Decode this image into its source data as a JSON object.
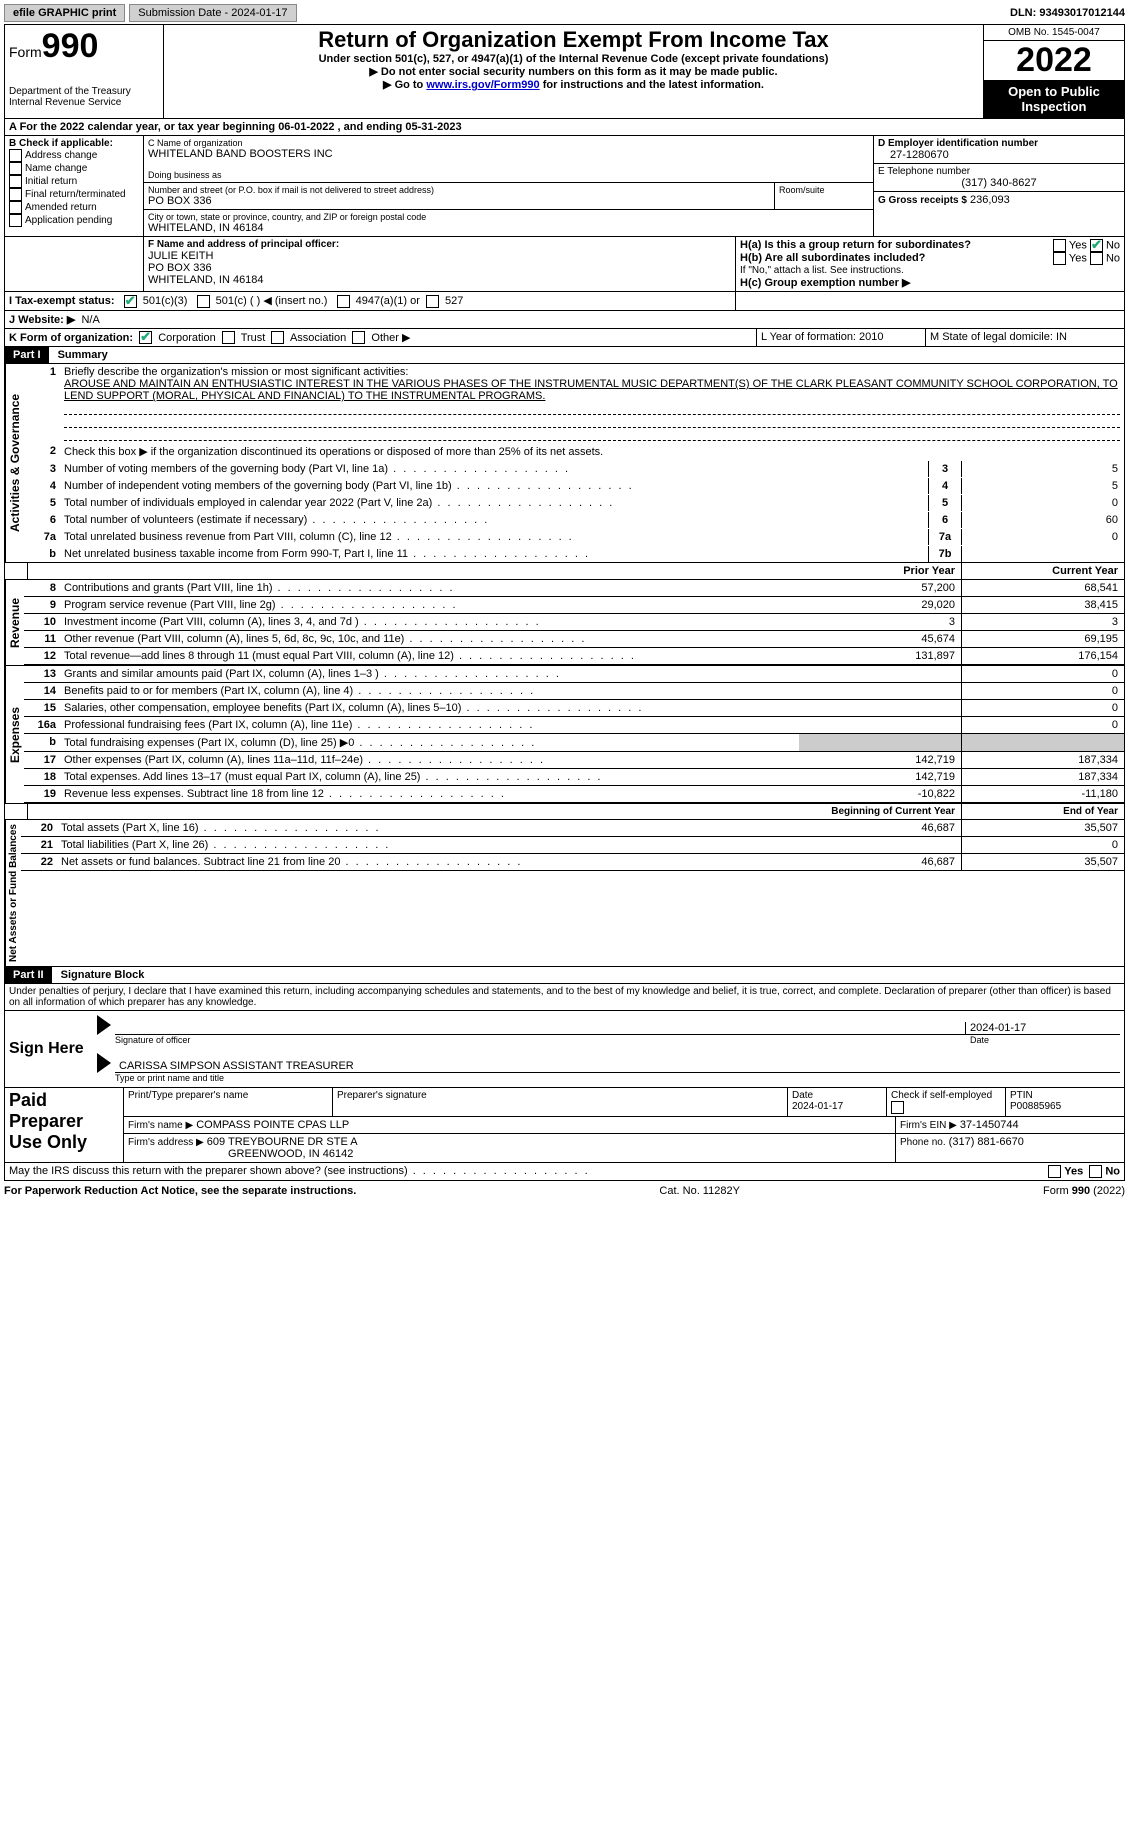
{
  "topbar": {
    "efile_label": "efile GRAPHIC print",
    "submission_label": "Submission Date - 2024-01-17",
    "dln_label": "DLN: 93493017012144"
  },
  "header": {
    "form_word": "Form",
    "form_num": "990",
    "dept": "Department of the Treasury\nInternal Revenue Service",
    "title": "Return of Organization Exempt From Income Tax",
    "subtitle": "Under section 501(c), 527, or 4947(a)(1) of the Internal Revenue Code (except private foundations)",
    "note1": "▶ Do not enter social security numbers on this form as it may be made public.",
    "note2_prefix": "▶ Go to ",
    "note2_link": "www.irs.gov/Form990",
    "note2_suffix": " for instructions and the latest information.",
    "omb": "OMB No. 1545-0047",
    "year": "2022",
    "open": "Open to Public Inspection"
  },
  "A": {
    "line": "A For the 2022 calendar year, or tax year beginning 06-01-2022   , and ending 05-31-2023"
  },
  "B": {
    "label": "B Check if applicable:",
    "opts": [
      "Address change",
      "Name change",
      "Initial return",
      "Final return/terminated",
      "Amended return",
      "Application pending"
    ]
  },
  "C": {
    "name_label": "C Name of organization",
    "name": "WHITELAND BAND BOOSTERS INC",
    "dba_label": "Doing business as",
    "street_label": "Number and street (or P.O. box if mail is not delivered to street address)",
    "room_label": "Room/suite",
    "street": "PO BOX 336",
    "city_label": "City or town, state or province, country, and ZIP or foreign postal code",
    "city": "WHITELAND, IN  46184"
  },
  "D": {
    "label": "D Employer identification number",
    "value": "27-1280670"
  },
  "E": {
    "label": "E Telephone number",
    "value": "(317) 340-8627"
  },
  "G": {
    "label": "G Gross receipts $",
    "value": "236,093"
  },
  "F": {
    "label": "F  Name and address of principal officer:",
    "name": "JULIE KEITH",
    "addr1": "PO BOX 336",
    "addr2": "WHITELAND, IN  46184"
  },
  "H": {
    "a": "H(a)  Is this a group return for subordinates?",
    "b": "H(b)  Are all subordinates included?",
    "b_note": "If \"No,\" attach a list. See instructions.",
    "c": "H(c)  Group exemption number ▶",
    "yes": "Yes",
    "no": "No"
  },
  "I": {
    "label": "I   Tax-exempt status:",
    "o1": "501(c)(3)",
    "o2": "501(c) (  ) ◀ (insert no.)",
    "o3": "4947(a)(1) or",
    "o4": "527"
  },
  "J": {
    "label": "J   Website: ▶",
    "value": "N/A"
  },
  "K": {
    "label": "K Form of organization:",
    "o1": "Corporation",
    "o2": "Trust",
    "o3": "Association",
    "o4": "Other ▶"
  },
  "L": {
    "label": "L Year of formation: 2010"
  },
  "M": {
    "label": "M State of legal domicile: IN"
  },
  "part1": {
    "hdr": "Part I",
    "title": "Summary",
    "q1": "Briefly describe the organization's mission or most significant activities:",
    "mission": "AROUSE AND MAINTAIN AN ENTHUSIASTIC INTEREST IN THE VARIOUS PHASES OF THE INSTRUMENTAL MUSIC DEPARTMENT(S) OF THE CLARK PLEASANT COMMUNITY SCHOOL CORPORATION, TO LEND SUPPORT (MORAL, PHYSICAL AND FINANCIAL) TO THE INSTRUMENTAL PROGRAMS.",
    "q2": "Check this box ▶        if the organization discontinued its operations or disposed of more than 25% of its net assets.",
    "governance_label": "Activities & Governance",
    "revenue_label": "Revenue",
    "expenses_label": "Expenses",
    "netassets_label": "Net Assets or Fund Balances",
    "lines_gov": [
      {
        "n": "3",
        "d": "Number of voting members of the governing body (Part VI, line 1a)",
        "box": "3",
        "v": "5"
      },
      {
        "n": "4",
        "d": "Number of independent voting members of the governing body (Part VI, line 1b)",
        "box": "4",
        "v": "5"
      },
      {
        "n": "5",
        "d": "Total number of individuals employed in calendar year 2022 (Part V, line 2a)",
        "box": "5",
        "v": "0"
      },
      {
        "n": "6",
        "d": "Total number of volunteers (estimate if necessary)",
        "box": "6",
        "v": "60"
      },
      {
        "n": "7a",
        "d": "Total unrelated business revenue from Part VIII, column (C), line 12",
        "box": "7a",
        "v": "0"
      },
      {
        "n": "b",
        "d": "Net unrelated business taxable income from Form 990-T, Part I, line 11",
        "box": "7b",
        "v": ""
      }
    ],
    "col_prior": "Prior Year",
    "col_curr": "Current Year",
    "lines_rev": [
      {
        "n": "8",
        "d": "Contributions and grants (Part VIII, line 1h)",
        "p": "57,200",
        "c": "68,541"
      },
      {
        "n": "9",
        "d": "Program service revenue (Part VIII, line 2g)",
        "p": "29,020",
        "c": "38,415"
      },
      {
        "n": "10",
        "d": "Investment income (Part VIII, column (A), lines 3, 4, and 7d )",
        "p": "3",
        "c": "3"
      },
      {
        "n": "11",
        "d": "Other revenue (Part VIII, column (A), lines 5, 6d, 8c, 9c, 10c, and 11e)",
        "p": "45,674",
        "c": "69,195"
      },
      {
        "n": "12",
        "d": "Total revenue—add lines 8 through 11 (must equal Part VIII, column (A), line 12)",
        "p": "131,897",
        "c": "176,154"
      }
    ],
    "lines_exp": [
      {
        "n": "13",
        "d": "Grants and similar amounts paid (Part IX, column (A), lines 1–3 )",
        "p": "",
        "c": "0"
      },
      {
        "n": "14",
        "d": "Benefits paid to or for members (Part IX, column (A), line 4)",
        "p": "",
        "c": "0"
      },
      {
        "n": "15",
        "d": "Salaries, other compensation, employee benefits (Part IX, column (A), lines 5–10)",
        "p": "",
        "c": "0"
      },
      {
        "n": "16a",
        "d": "Professional fundraising fees (Part IX, column (A), line 11e)",
        "p": "",
        "c": "0"
      },
      {
        "n": "b",
        "d": "Total fundraising expenses (Part IX, column (D), line 25) ▶0",
        "p": "SHADE",
        "c": "SHADE"
      },
      {
        "n": "17",
        "d": "Other expenses (Part IX, column (A), lines 11a–11d, 11f–24e)",
        "p": "142,719",
        "c": "187,334"
      },
      {
        "n": "18",
        "d": "Total expenses. Add lines 13–17 (must equal Part IX, column (A), line 25)",
        "p": "142,719",
        "c": "187,334"
      },
      {
        "n": "19",
        "d": "Revenue less expenses. Subtract line 18 from line 12",
        "p": "-10,822",
        "c": "-11,180"
      }
    ],
    "col_begin": "Beginning of Current Year",
    "col_end": "End of Year",
    "lines_net": [
      {
        "n": "20",
        "d": "Total assets (Part X, line 16)",
        "p": "46,687",
        "c": "35,507"
      },
      {
        "n": "21",
        "d": "Total liabilities (Part X, line 26)",
        "p": "",
        "c": "0"
      },
      {
        "n": "22",
        "d": "Net assets or fund balances. Subtract line 21 from line 20",
        "p": "46,687",
        "c": "35,507"
      }
    ]
  },
  "part2": {
    "hdr": "Part II",
    "title": "Signature Block",
    "perjury": "Under penalties of perjury, I declare that I have examined this return, including accompanying schedules and statements, and to the best of my knowledge and belief, it is true, correct, and complete. Declaration of preparer (other than officer) is based on all information of which preparer has any knowledge.",
    "sign_here": "Sign Here",
    "sig_date": "2024-01-17",
    "sig_officer_line": "Signature of officer",
    "date_label": "Date",
    "officer_name": "CARISSA SIMPSON  ASSISTANT TREASURER",
    "officer_type_line": "Type or print name and title",
    "paid": "Paid Preparer Use Only",
    "pp_name_label": "Print/Type preparer's name",
    "pp_sig_label": "Preparer's signature",
    "pp_date_label": "Date",
    "pp_date": "2024-01-17",
    "pp_check_label": "Check        if self-employed",
    "ptin_label": "PTIN",
    "ptin": "P00885965",
    "firm_name_label": "Firm's name    ▶",
    "firm_name": "COMPASS POINTE CPAS LLP",
    "firm_ein_label": "Firm's EIN ▶",
    "firm_ein": "37-1450744",
    "firm_addr_label": "Firm's address ▶",
    "firm_addr1": "609 TREYBOURNE DR STE A",
    "firm_addr2": "GREENWOOD, IN  46142",
    "phone_label": "Phone no.",
    "phone": "(317) 881-6670",
    "discuss": "May the IRS discuss this return with the preparer shown above? (see instructions)"
  },
  "footer": {
    "left": "For Paperwork Reduction Act Notice, see the separate instructions.",
    "mid": "Cat. No. 11282Y",
    "right": "Form 990 (2022)"
  }
}
